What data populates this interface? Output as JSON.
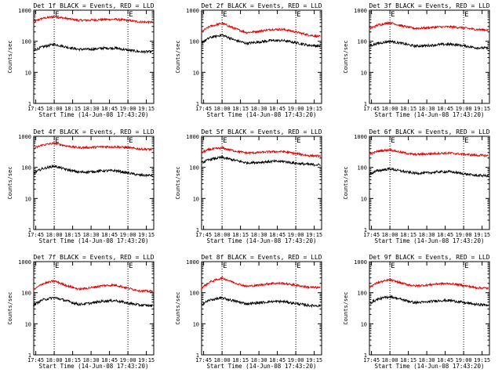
{
  "figure": {
    "colors": {
      "events": "#000000",
      "lld": "#e00000",
      "axes": "#000000",
      "background": "#ffffff"
    }
  },
  "chart_data": [
    {
      "type": "line",
      "title": "Det 1f BLACK = Events, RED = LLD",
      "xlabel": "Start Time (14-Jun-08 17:43:20)",
      "ylabel": "Counts/sec",
      "y_scale": "log",
      "ylim": [
        1,
        1000
      ],
      "x_ticks": [
        "17:45",
        "18:00",
        "18:15",
        "18:30",
        "18:45",
        "19:00",
        "19:15"
      ],
      "y_ticks": [
        "1",
        "10",
        "100",
        "1000"
      ],
      "markers": [
        {
          "label": "E",
          "time": "18:00"
        },
        {
          "label": "E",
          "time": "19:00"
        }
      ],
      "grid": false,
      "series": [
        {
          "name": "LLD",
          "color": "red",
          "x": [
            "17:43",
            "17:50",
            "18:00",
            "18:10",
            "18:20",
            "18:30",
            "18:40",
            "18:50",
            "19:00",
            "19:10",
            "19:20"
          ],
          "values": [
            420,
            540,
            620,
            540,
            470,
            480,
            500,
            510,
            470,
            420,
            410
          ]
        },
        {
          "name": "Events",
          "color": "black",
          "x": [
            "17:43",
            "17:50",
            "18:00",
            "18:10",
            "18:20",
            "18:30",
            "18:40",
            "18:50",
            "19:00",
            "19:10",
            "19:20"
          ],
          "values": [
            50,
            65,
            80,
            65,
            55,
            55,
            60,
            60,
            52,
            46,
            46
          ]
        }
      ]
    },
    {
      "type": "line",
      "title": "Det 2f BLACK = Events, RED = LLD",
      "xlabel": "Start Time (14-Jun-08 17:43:20)",
      "ylabel": "Counts/sec",
      "y_scale": "log",
      "ylim": [
        1,
        1000
      ],
      "x_ticks": [
        "17:45",
        "18:00",
        "18:15",
        "18:30",
        "18:45",
        "19:00",
        "19:15"
      ],
      "y_ticks": [
        "1",
        "10",
        "100",
        "1000"
      ],
      "markers": [
        {
          "label": "E",
          "time": "18:00"
        },
        {
          "label": "E",
          "time": "19:00"
        }
      ],
      "grid": false,
      "series": [
        {
          "name": "LLD",
          "color": "red",
          "x": [
            "17:43",
            "17:50",
            "18:00",
            "18:10",
            "18:20",
            "18:30",
            "18:40",
            "18:50",
            "19:00",
            "19:10",
            "19:20"
          ],
          "values": [
            200,
            300,
            380,
            260,
            190,
            210,
            240,
            240,
            200,
            160,
            140
          ]
        },
        {
          "name": "Events",
          "color": "black",
          "x": [
            "17:43",
            "17:50",
            "18:00",
            "18:10",
            "18:20",
            "18:30",
            "18:40",
            "18:50",
            "19:00",
            "19:10",
            "19:20"
          ],
          "values": [
            90,
            130,
            160,
            110,
            85,
            95,
            105,
            105,
            90,
            75,
            70
          ]
        }
      ]
    },
    {
      "type": "line",
      "title": "Det 3f BLACK = Events, RED = LLD",
      "xlabel": "Start Time (14-Jun-08 17:43:20)",
      "ylabel": "Counts/sec",
      "y_scale": "log",
      "ylim": [
        1,
        1000
      ],
      "x_ticks": [
        "17:45",
        "18:00",
        "18:15",
        "18:30",
        "18:45",
        "19:00",
        "19:15"
      ],
      "y_ticks": [
        "1",
        "10",
        "100",
        "1000"
      ],
      "markers": [
        {
          "label": "E",
          "time": "18:00"
        },
        {
          "label": "E",
          "time": "19:00"
        }
      ],
      "grid": false,
      "series": [
        {
          "name": "LLD",
          "color": "red",
          "x": [
            "17:43",
            "17:50",
            "18:00",
            "18:10",
            "18:20",
            "18:30",
            "18:40",
            "18:50",
            "19:00",
            "19:10",
            "19:20"
          ],
          "values": [
            250,
            330,
            400,
            310,
            260,
            270,
            290,
            290,
            270,
            240,
            230
          ]
        },
        {
          "name": "Events",
          "color": "black",
          "x": [
            "17:43",
            "17:50",
            "18:00",
            "18:10",
            "18:20",
            "18:30",
            "18:40",
            "18:50",
            "19:00",
            "19:10",
            "19:20"
          ],
          "values": [
            70,
            85,
            100,
            85,
            70,
            72,
            78,
            80,
            72,
            62,
            60
          ]
        }
      ]
    },
    {
      "type": "line",
      "title": "Det 4f BLACK = Events, RED = LLD",
      "xlabel": "Start Time (14-Jun-08 17:43:20)",
      "ylabel": "Counts/sec",
      "y_scale": "log",
      "ylim": [
        1,
        1000
      ],
      "x_ticks": [
        "17:45",
        "18:00",
        "18:15",
        "18:30",
        "18:45",
        "19:00",
        "19:15"
      ],
      "y_ticks": [
        "1",
        "10",
        "100",
        "1000"
      ],
      "markers": [
        {
          "label": "E",
          "time": "18:00"
        },
        {
          "label": "E",
          "time": "19:00"
        }
      ],
      "grid": false,
      "series": [
        {
          "name": "LLD",
          "color": "red",
          "x": [
            "17:43",
            "17:50",
            "18:00",
            "18:10",
            "18:20",
            "18:30",
            "18:40",
            "18:50",
            "19:00",
            "19:10",
            "19:20"
          ],
          "values": [
            400,
            520,
            600,
            490,
            430,
            440,
            460,
            460,
            430,
            390,
            380
          ]
        },
        {
          "name": "Events",
          "color": "black",
          "x": [
            "17:43",
            "17:50",
            "18:00",
            "18:10",
            "18:20",
            "18:30",
            "18:40",
            "18:50",
            "19:00",
            "19:10",
            "19:20"
          ],
          "values": [
            65,
            90,
            110,
            85,
            70,
            72,
            78,
            78,
            66,
            56,
            55
          ]
        }
      ]
    },
    {
      "type": "line",
      "title": "Det 5f BLACK = Events, RED = LLD",
      "xlabel": "Start Time (14-Jun-08 17:43:20)",
      "ylabel": "Counts/sec",
      "y_scale": "log",
      "ylim": [
        1,
        1000
      ],
      "x_ticks": [
        "17:45",
        "18:00",
        "18:15",
        "18:30",
        "18:45",
        "19:00",
        "19:15"
      ],
      "y_ticks": [
        "1",
        "10",
        "100",
        "1000"
      ],
      "markers": [
        {
          "label": "E",
          "time": "18:00"
        },
        {
          "label": "E",
          "time": "19:00"
        }
      ],
      "grid": false,
      "series": [
        {
          "name": "LLD",
          "color": "red",
          "x": [
            "17:43",
            "17:50",
            "18:00",
            "18:10",
            "18:20",
            "18:30",
            "18:40",
            "18:50",
            "19:00",
            "19:10",
            "19:20"
          ],
          "values": [
            300,
            380,
            420,
            340,
            290,
            300,
            320,
            320,
            280,
            240,
            230
          ]
        },
        {
          "name": "Events",
          "color": "black",
          "x": [
            "17:43",
            "17:50",
            "18:00",
            "18:10",
            "18:20",
            "18:30",
            "18:40",
            "18:50",
            "19:00",
            "19:10",
            "19:20"
          ],
          "values": [
            140,
            180,
            210,
            170,
            140,
            145,
            155,
            155,
            135,
            125,
            120
          ]
        }
      ]
    },
    {
      "type": "line",
      "title": "Det 6f BLACK = Events, RED = LLD",
      "xlabel": "Start Time (14-Jun-08 17:43:20)",
      "ylabel": "Counts/sec",
      "y_scale": "log",
      "ylim": [
        1,
        1000
      ],
      "x_ticks": [
        "17:45",
        "18:00",
        "18:15",
        "18:30",
        "18:45",
        "19:00",
        "19:15"
      ],
      "y_ticks": [
        "1",
        "10",
        "100",
        "1000"
      ],
      "markers": [
        {
          "label": "E",
          "time": "18:00"
        },
        {
          "label": "E",
          "time": "19:00"
        }
      ],
      "grid": false,
      "series": [
        {
          "name": "LLD",
          "color": "red",
          "x": [
            "17:43",
            "17:50",
            "18:00",
            "18:10",
            "18:20",
            "18:30",
            "18:40",
            "18:50",
            "19:00",
            "19:10",
            "19:20"
          ],
          "values": [
            260,
            330,
            370,
            300,
            260,
            270,
            285,
            285,
            265,
            245,
            240
          ]
        },
        {
          "name": "Events",
          "color": "black",
          "x": [
            "17:43",
            "17:50",
            "18:00",
            "18:10",
            "18:20",
            "18:30",
            "18:40",
            "18:50",
            "19:00",
            "19:10",
            "19:20"
          ],
          "values": [
            60,
            78,
            90,
            75,
            65,
            66,
            72,
            72,
            62,
            55,
            54
          ]
        }
      ]
    },
    {
      "type": "line",
      "title": "Det 7f BLACK = Events, RED = LLD",
      "xlabel": "Start Time (14-Jun-08 17:43:20)",
      "ylabel": "Counts/sec",
      "y_scale": "log",
      "ylim": [
        1,
        1000
      ],
      "x_ticks": [
        "17:45",
        "18:00",
        "18:15",
        "18:30",
        "18:45",
        "19:00",
        "19:15"
      ],
      "y_ticks": [
        "1",
        "10",
        "100",
        "1000"
      ],
      "markers": [
        {
          "label": "E",
          "time": "18:00"
        },
        {
          "label": "E",
          "time": "19:00"
        }
      ],
      "grid": false,
      "series": [
        {
          "name": "LLD",
          "color": "red",
          "x": [
            "17:43",
            "17:50",
            "18:00",
            "18:10",
            "18:20",
            "18:30",
            "18:40",
            "18:50",
            "19:00",
            "19:10",
            "19:20"
          ],
          "values": [
            120,
            190,
            240,
            170,
            130,
            145,
            170,
            175,
            140,
            115,
            110
          ]
        },
        {
          "name": "Events",
          "color": "black",
          "x": [
            "17:43",
            "17:50",
            "18:00",
            "18:10",
            "18:20",
            "18:30",
            "18:40",
            "18:50",
            "19:00",
            "19:10",
            "19:20"
          ],
          "values": [
            40,
            58,
            70,
            55,
            42,
            46,
            54,
            56,
            46,
            40,
            38
          ]
        }
      ]
    },
    {
      "type": "line",
      "title": "Det 8f BLACK = Events, RED = LLD",
      "xlabel": "Start Time (14-Jun-08 17:43:20)",
      "ylabel": "Counts/sec",
      "y_scale": "log",
      "ylim": [
        1,
        1000
      ],
      "x_ticks": [
        "17:45",
        "18:00",
        "18:15",
        "18:30",
        "18:45",
        "19:00",
        "19:15"
      ],
      "y_ticks": [
        "1",
        "10",
        "100",
        "1000"
      ],
      "markers": [
        {
          "label": "E",
          "time": "18:00"
        },
        {
          "label": "E",
          "time": "19:00"
        }
      ],
      "grid": false,
      "series": [
        {
          "name": "LLD",
          "color": "red",
          "x": [
            "17:43",
            "17:50",
            "18:00",
            "18:10",
            "18:20",
            "18:30",
            "18:40",
            "18:50",
            "19:00",
            "19:10",
            "19:20"
          ],
          "values": [
            140,
            220,
            300,
            210,
            160,
            175,
            200,
            200,
            175,
            150,
            145
          ]
        },
        {
          "name": "Events",
          "color": "black",
          "x": [
            "17:43",
            "17:50",
            "18:00",
            "18:10",
            "18:20",
            "18:30",
            "18:40",
            "18:50",
            "19:00",
            "19:10",
            "19:20"
          ],
          "values": [
            42,
            58,
            68,
            54,
            44,
            47,
            52,
            52,
            45,
            39,
            38
          ]
        }
      ]
    },
    {
      "type": "line",
      "title": "Det 9f BLACK = Events, RED = LLD",
      "xlabel": "Start Time (14-Jun-08 17:43:20)",
      "ylabel": "Counts/sec",
      "y_scale": "log",
      "ylim": [
        1,
        1000
      ],
      "x_ticks": [
        "17:45",
        "18:00",
        "18:15",
        "18:30",
        "18:45",
        "19:00",
        "19:15"
      ],
      "y_ticks": [
        "1",
        "10",
        "100",
        "1000"
      ],
      "markers": [
        {
          "label": "E",
          "time": "18:00"
        },
        {
          "label": "E",
          "time": "19:00"
        }
      ],
      "grid": false,
      "series": [
        {
          "name": "LLD",
          "color": "red",
          "x": [
            "17:43",
            "17:50",
            "18:00",
            "18:10",
            "18:20",
            "18:30",
            "18:40",
            "18:50",
            "19:00",
            "19:10",
            "19:20"
          ],
          "values": [
            150,
            210,
            260,
            200,
            165,
            175,
            195,
            195,
            170,
            145,
            140
          ]
        },
        {
          "name": "Events",
          "color": "black",
          "x": [
            "17:43",
            "17:50",
            "18:00",
            "18:10",
            "18:20",
            "18:30",
            "18:40",
            "18:50",
            "19:00",
            "19:10",
            "19:20"
          ],
          "values": [
            45,
            62,
            75,
            60,
            48,
            50,
            56,
            56,
            48,
            42,
            40
          ]
        }
      ]
    }
  ]
}
